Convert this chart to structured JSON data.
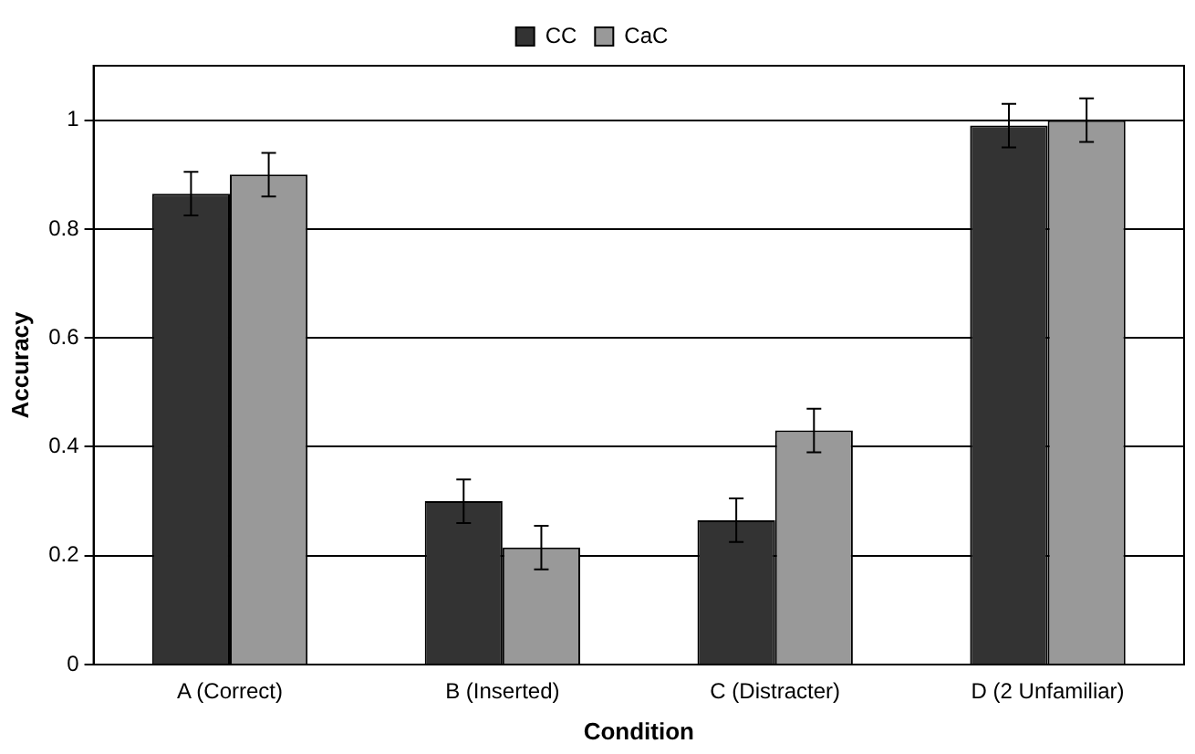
{
  "chart_data": {
    "type": "bar",
    "xlabel": "Condition",
    "ylabel": "Accuracy",
    "categories": [
      "A (Correct)",
      "B (Inserted)",
      "C (Distracter)",
      "D (2 Unfamiliar)"
    ],
    "series": [
      {
        "name": "CC",
        "color": "#333333",
        "values": [
          0.865,
          0.3,
          0.265,
          0.99
        ],
        "errors": [
          0.04,
          0.04,
          0.04,
          0.04
        ]
      },
      {
        "name": "CaC",
        "color": "#999999",
        "values": [
          0.9,
          0.215,
          0.43,
          1.0
        ],
        "errors": [
          0.04,
          0.04,
          0.04,
          0.04
        ]
      }
    ],
    "ylim": [
      0,
      1.1
    ],
    "yticks": [
      0,
      0.2,
      0.4,
      0.6,
      0.8,
      1
    ],
    "grid": "y",
    "legend": "top"
  }
}
